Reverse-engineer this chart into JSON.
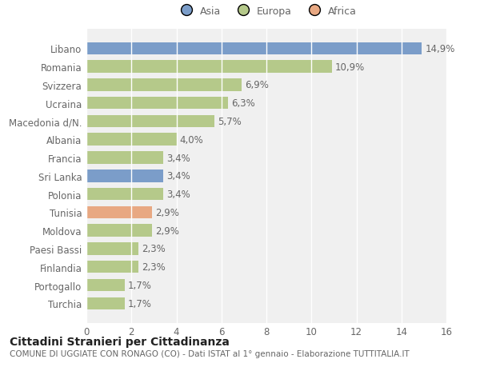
{
  "categories": [
    "Turchia",
    "Portogallo",
    "Finlandia",
    "Paesi Bassi",
    "Moldova",
    "Tunisia",
    "Polonia",
    "Sri Lanka",
    "Francia",
    "Albania",
    "Macedonia d/N.",
    "Ucraina",
    "Svizzera",
    "Romania",
    "Libano"
  ],
  "values": [
    1.7,
    1.7,
    2.3,
    2.3,
    2.9,
    2.9,
    3.4,
    3.4,
    3.4,
    4.0,
    5.7,
    6.3,
    6.9,
    10.9,
    14.9
  ],
  "labels": [
    "1,7%",
    "1,7%",
    "2,3%",
    "2,3%",
    "2,9%",
    "2,9%",
    "3,4%",
    "3,4%",
    "3,4%",
    "4,0%",
    "5,7%",
    "6,3%",
    "6,9%",
    "10,9%",
    "14,9%"
  ],
  "colors": [
    "#b5c98a",
    "#b5c98a",
    "#b5c98a",
    "#b5c98a",
    "#b5c98a",
    "#e8a882",
    "#b5c98a",
    "#7b9dc9",
    "#b5c98a",
    "#b5c98a",
    "#b5c98a",
    "#b5c98a",
    "#b5c98a",
    "#b5c98a",
    "#7b9dc9"
  ],
  "legend": [
    {
      "label": "Asia",
      "color": "#7b9dc9"
    },
    {
      "label": "Europa",
      "color": "#b5c98a"
    },
    {
      "label": "Africa",
      "color": "#e8a882"
    }
  ],
  "xlim": [
    0,
    16
  ],
  "xticks": [
    0,
    2,
    4,
    6,
    8,
    10,
    12,
    14,
    16
  ],
  "title": "Cittadini Stranieri per Cittadinanza",
  "subtitle": "COMUNE DI UGGIATE CON RONAGO (CO) - Dati ISTAT al 1° gennaio - Elaborazione TUTTITALIA.IT",
  "background_color": "#ffffff",
  "plot_bg_color": "#f0f0f0",
  "bar_height": 0.68,
  "label_fontsize": 8.5,
  "tick_fontsize": 8.5,
  "title_fontsize": 10,
  "subtitle_fontsize": 7.5,
  "grid_color": "#ffffff",
  "spine_color": "#cccccc",
  "text_color": "#666666"
}
